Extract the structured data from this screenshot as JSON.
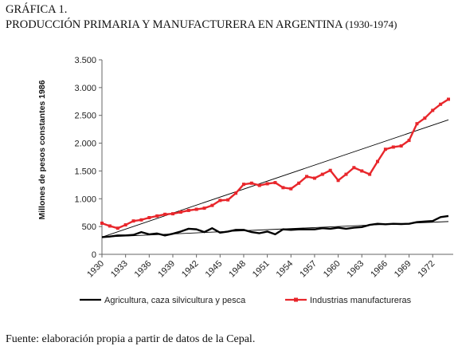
{
  "figure_label": "GRÁFICA 1.",
  "figure_title": "PRODUCCIÓN PRIMARIA Y MANUFACTURERA EN ARGENTINA",
  "figure_years": "(1930-1974)",
  "source_note": "Fuente: elaboración propia a partir de datos de la Cepal.",
  "chart_data": {
    "type": "line",
    "ylabel": "Millones de pesos constantes 1986",
    "ylim": [
      0,
      3500
    ],
    "xlim": [
      1930,
      1974
    ],
    "yticks": [
      0,
      500,
      1000,
      1500,
      2000,
      2500,
      3000,
      3500
    ],
    "ytick_labels": [
      "0",
      "500",
      "1.000",
      "1.500",
      "2.000",
      "2.500",
      "3.000",
      "3.500"
    ],
    "xticks": [
      1930,
      1933,
      1936,
      1939,
      1942,
      1945,
      1948,
      1951,
      1954,
      1957,
      1960,
      1963,
      1966,
      1969,
      1972
    ],
    "grid": false,
    "legend_position": "bottom",
    "x": [
      1930,
      1931,
      1932,
      1933,
      1934,
      1935,
      1936,
      1937,
      1938,
      1939,
      1940,
      1941,
      1942,
      1943,
      1944,
      1945,
      1946,
      1947,
      1948,
      1949,
      1950,
      1951,
      1952,
      1953,
      1954,
      1955,
      1956,
      1957,
      1958,
      1959,
      1960,
      1961,
      1962,
      1963,
      1964,
      1965,
      1966,
      1967,
      1968,
      1969,
      1970,
      1971,
      1972,
      1973,
      1974
    ],
    "series": [
      {
        "name": "Agricultura, caza silvicultura y pesca",
        "color": "#000000",
        "marker": "none",
        "values": [
          310,
          320,
          340,
          340,
          350,
          400,
          360,
          375,
          340,
          370,
          410,
          460,
          450,
          400,
          470,
          390,
          410,
          440,
          440,
          400,
          380,
          410,
          360,
          450,
          440,
          450,
          450,
          450,
          470,
          460,
          480,
          460,
          480,
          490,
          530,
          550,
          540,
          550,
          545,
          550,
          580,
          590,
          600,
          670,
          690
        ]
      },
      {
        "name": "Industrias manufactureras",
        "color": "#e8262b",
        "marker": "square",
        "values": [
          560,
          510,
          470,
          530,
          600,
          620,
          660,
          690,
          720,
          730,
          760,
          790,
          810,
          830,
          880,
          970,
          980,
          1100,
          1260,
          1280,
          1240,
          1270,
          1290,
          1200,
          1180,
          1280,
          1400,
          1370,
          1440,
          1510,
          1330,
          1440,
          1560,
          1500,
          1440,
          1670,
          1890,
          1930,
          1950,
          2050,
          2350,
          2450,
          2590,
          2700,
          2790
        ]
      },
      {
        "name": "",
        "color": "#000000",
        "trend": true,
        "values_at_limits": [
          310,
          2420
        ]
      },
      {
        "name": "",
        "color": "#000000",
        "trend": true,
        "values_at_limits": [
          310,
          590
        ]
      }
    ]
  }
}
